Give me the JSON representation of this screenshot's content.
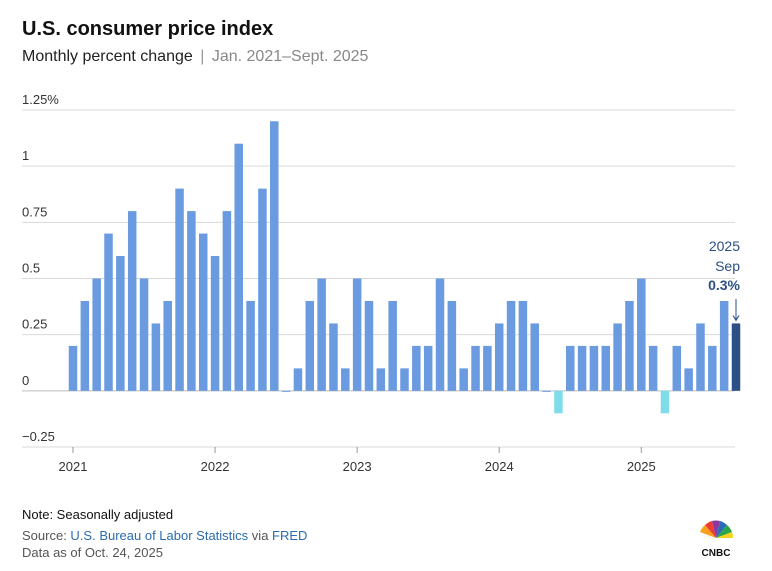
{
  "title": "U.S. consumer price index",
  "subtitle": "Monthly percent change",
  "subtitle_separator": "|",
  "subtitle_range": "Jan. 2021–Sept. 2025",
  "note": "Note: Seasonally adjusted",
  "source": {
    "prefix": "Source: ",
    "bls": "U.S. Bureau of Labor Statistics",
    "via": " via ",
    "fred": "FRED"
  },
  "data_as_of": "Data as of Oct. 24, 2025",
  "logo_text": "CNBC",
  "colors": {
    "bar": "#6a9ae0",
    "bar_negative": "#7fdcea",
    "bar_highlight": "#2c4f85",
    "grid": "#d9d9d9",
    "annotation": "#2c4f85"
  },
  "chart_data": {
    "type": "bar",
    "title": "U.S. consumer price index",
    "subtitle": "Monthly percent change",
    "xlabel": "",
    "ylabel": "",
    "ylim": [
      -0.25,
      1.25
    ],
    "yticks": [
      {
        "value": 1.25,
        "label": "1.25%"
      },
      {
        "value": 1.0,
        "label": "1"
      },
      {
        "value": 0.75,
        "label": "0.75"
      },
      {
        "value": 0.5,
        "label": "0.5"
      },
      {
        "value": 0.25,
        "label": "0.25"
      },
      {
        "value": 0.0,
        "label": "0"
      },
      {
        "value": -0.25,
        "label": "−0.25"
      }
    ],
    "xticks": [
      {
        "index": 0,
        "label": "2021"
      },
      {
        "index": 12,
        "label": "2022"
      },
      {
        "index": 24,
        "label": "2023"
      },
      {
        "index": 36,
        "label": "2024"
      },
      {
        "index": 48,
        "label": "2025"
      }
    ],
    "grid": true,
    "start": "Jan. 2021",
    "end": "Sept. 2025",
    "values": [
      0.2,
      0.4,
      0.5,
      0.7,
      0.6,
      0.8,
      0.5,
      0.3,
      0.4,
      0.9,
      0.8,
      0.7,
      0.6,
      0.8,
      1.1,
      0.4,
      0.9,
      1.2,
      0.0,
      0.1,
      0.4,
      0.5,
      0.3,
      0.1,
      0.5,
      0.4,
      0.1,
      0.4,
      0.1,
      0.2,
      0.2,
      0.5,
      0.4,
      0.1,
      0.2,
      0.2,
      0.3,
      0.4,
      0.4,
      0.3,
      0.0,
      -0.1,
      0.2,
      0.2,
      0.2,
      0.2,
      0.3,
      0.4,
      0.5,
      0.2,
      -0.1,
      0.2,
      0.1,
      0.3,
      0.2,
      0.4,
      0.3
    ],
    "annotation": {
      "index": 56,
      "year": "2025",
      "month": "Sep",
      "value_label": "0.3%"
    }
  }
}
